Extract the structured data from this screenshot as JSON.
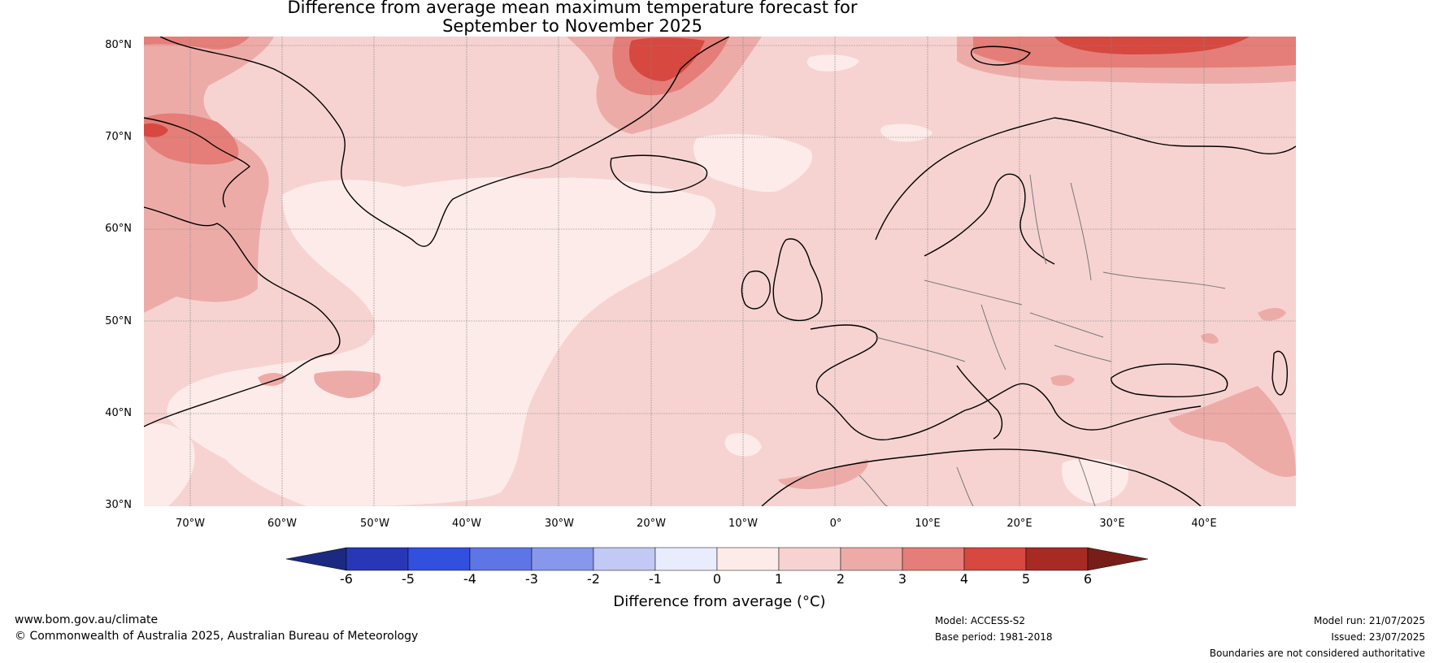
{
  "title": {
    "line1": "Difference from average mean maximum temperature forecast for",
    "line2": "September to November 2025"
  },
  "map": {
    "region": "North Atlantic and Europe",
    "lat_labels": [
      "80°N",
      "70°N",
      "60°N",
      "50°N",
      "40°N",
      "30°N"
    ],
    "lon_labels": [
      "70°W",
      "60°W",
      "50°W",
      "40°W",
      "30°W",
      "20°W",
      "10°W",
      "0°",
      "10°E",
      "20°E",
      "30°E",
      "40°E"
    ],
    "lat_range": [
      30,
      80
    ],
    "lon_range": [
      -75,
      50
    ],
    "gridlines": true
  },
  "colorbar": {
    "ticks": [
      "-6",
      "-5",
      "-4",
      "-3",
      "-2",
      "-1",
      "0",
      "1",
      "2",
      "3",
      "4",
      "5",
      "6"
    ],
    "label": "Difference from average (°C)",
    "colors": {
      "below_min": "#1b2a80",
      "bins": [
        "#2737b5",
        "#3150e0",
        "#5e75e6",
        "#8797eb",
        "#c1c9f4",
        "#e9ecfc",
        "#fcebe9",
        "#f6d3d1",
        "#edaba8",
        "#e57e78",
        "#d64840",
        "#a82a24"
      ],
      "above_max": "#781e19"
    }
  },
  "footer": {
    "website": "www.bom.gov.au/climate",
    "copyright": "© Commonwealth of Australia 2025, Australian Bureau of Meteorology",
    "model": "Model: ACCESS-S2",
    "base_period": "Base period: 1981-2018",
    "model_run": "Model run: 21/07/2025",
    "issued": "Issued: 23/07/2025",
    "disclaimer": "Boundaries are not considered authoritative"
  }
}
